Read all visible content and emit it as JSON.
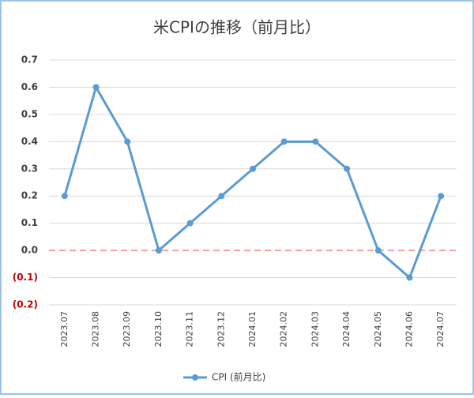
{
  "chart_data": {
    "type": "line",
    "title": "米CPIの推移（前月比）",
    "categories": [
      "2023.07",
      "2023.08",
      "2023.09",
      "2023.10",
      "2023.11",
      "2023.12",
      "2024.01",
      "2024.02",
      "2024.03",
      "2024.04",
      "2024.05",
      "2024.06",
      "2024.07"
    ],
    "series": [
      {
        "name": "CPI (前月比)",
        "color": "#5b9bd5",
        "values": [
          0.2,
          0.6,
          0.4,
          0,
          0.1,
          0.2,
          0.3,
          0.4,
          0.4,
          0.3,
          0,
          -0.1,
          0.2
        ]
      }
    ],
    "ylim": [
      -0.2,
      0.7
    ],
    "yticks": [
      {
        "value": -0.2,
        "label": "(0.2)"
      },
      {
        "value": -0.1,
        "label": "(0.1)"
      },
      {
        "value": 0,
        "label": "0.0"
      },
      0.1,
      0.2,
      0.3,
      0.4,
      0.5,
      0.6,
      0.7
    ],
    "negative_tick_color": "#c00000",
    "zero_line_color": "#f4a0a0",
    "grid": true,
    "legend": "bottom"
  }
}
